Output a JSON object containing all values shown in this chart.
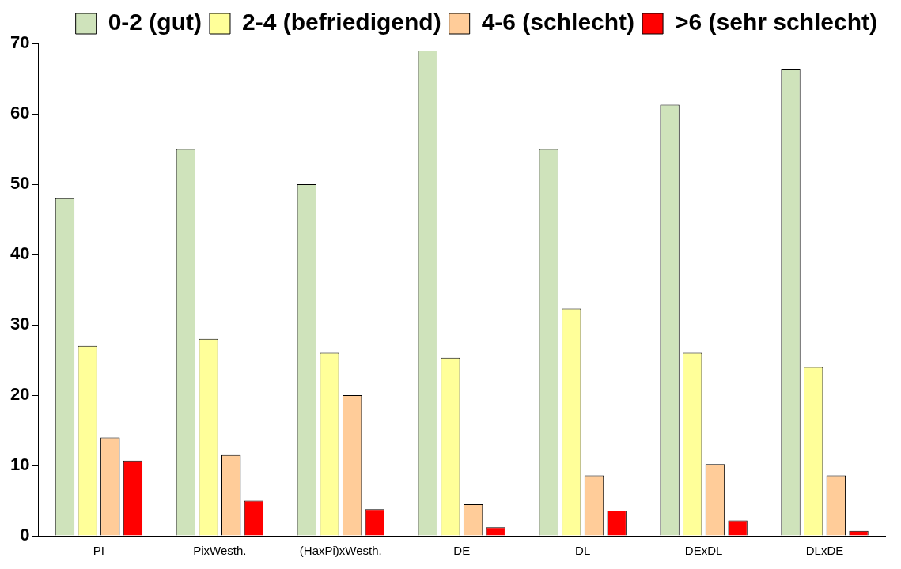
{
  "chart_data": {
    "type": "bar",
    "categories": [
      "PI",
      "PixWesth.",
      "(HaxPi)xWesth.",
      "DE",
      "DL",
      "DExDL",
      "DLxDE"
    ],
    "series": [
      {
        "name": "0-2 (gut)",
        "color": "#cfe3bb",
        "values": [
          48,
          55,
          50,
          69,
          55,
          61.3,
          66.4
        ]
      },
      {
        "name": "2-4 (befriedigend)",
        "color": "#ffff99",
        "values": [
          27,
          28,
          26,
          25.3,
          32.3,
          26,
          24
        ]
      },
      {
        "name": "4-6 (schlecht)",
        "color": "#ffcc99",
        "values": [
          14,
          11.5,
          20,
          4.5,
          8.6,
          10.2,
          8.6
        ]
      },
      {
        "name": ">6 (sehr schlecht)",
        "color": "#ff0000",
        "values": [
          10.7,
          5,
          3.8,
          1.2,
          3.6,
          2.2,
          0.7
        ]
      }
    ],
    "ylim": [
      0,
      70
    ],
    "yticks": [
      0,
      10,
      20,
      30,
      40,
      50,
      60,
      70
    ],
    "grid": false,
    "legend": "top"
  }
}
